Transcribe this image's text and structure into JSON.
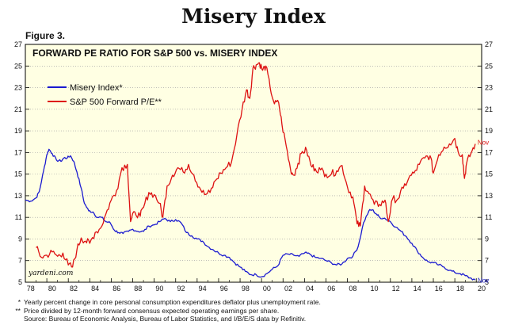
{
  "page_title": "Misery Index",
  "figure_label": "Figure 3.",
  "chart_data": {
    "type": "line",
    "title": "FORWARD PE RATIO FOR S&P 500 vs. MISERY INDEX",
    "x_ticks": [
      "78",
      "80",
      "82",
      "84",
      "86",
      "88",
      "90",
      "92",
      "94",
      "96",
      "98",
      "00",
      "02",
      "04",
      "06",
      "08",
      "10",
      "12",
      "14",
      "16",
      "18",
      "20"
    ],
    "xlim": [
      1978,
      2020.5
    ],
    "y_left": {
      "ylim": [
        5,
        27
      ],
      "ticks": [
        5,
        7,
        9,
        11,
        13,
        15,
        17,
        19,
        21,
        23,
        25,
        27
      ]
    },
    "y_right": {
      "ylim": [
        5,
        27
      ],
      "ticks": [
        5,
        7,
        9,
        11,
        13,
        15,
        17,
        19,
        21,
        23,
        25,
        27
      ]
    },
    "legend_position": "top-left",
    "watermark": "yardeni.com",
    "series": [
      {
        "name": "Misery Index*",
        "color": "#1a1ad0",
        "end_label": "Nov",
        "points": [
          [
            1978.0,
            12.6
          ],
          [
            1978.5,
            12.5
          ],
          [
            1979.0,
            12.8
          ],
          [
            1979.3,
            13.4
          ],
          [
            1979.7,
            15.3
          ],
          [
            1980.0,
            16.8
          ],
          [
            1980.2,
            17.3
          ],
          [
            1980.5,
            16.9
          ],
          [
            1980.9,
            16.3
          ],
          [
            1981.3,
            16.2
          ],
          [
            1981.6,
            16.5
          ],
          [
            1981.9,
            16.5
          ],
          [
            1982.2,
            16.7
          ],
          [
            1982.5,
            16.2
          ],
          [
            1982.8,
            15.2
          ],
          [
            1983.2,
            13.7
          ],
          [
            1983.5,
            12.3
          ],
          [
            1983.9,
            11.6
          ],
          [
            1984.3,
            11.5
          ],
          [
            1984.7,
            11.0
          ],
          [
            1985.1,
            11.0
          ],
          [
            1985.5,
            10.6
          ],
          [
            1985.9,
            10.5
          ],
          [
            1986.3,
            9.8
          ],
          [
            1986.7,
            9.6
          ],
          [
            1987.1,
            9.5
          ],
          [
            1987.6,
            9.7
          ],
          [
            1988.0,
            9.9
          ],
          [
            1988.5,
            9.7
          ],
          [
            1989.0,
            9.7
          ],
          [
            1989.5,
            10.2
          ],
          [
            1990.0,
            10.3
          ],
          [
            1990.5,
            10.6
          ],
          [
            1991.0,
            10.9
          ],
          [
            1991.5,
            10.6
          ],
          [
            1992.0,
            10.8
          ],
          [
            1992.5,
            10.5
          ],
          [
            1993.0,
            9.6
          ],
          [
            1993.5,
            9.3
          ],
          [
            1994.0,
            9.0
          ],
          [
            1994.5,
            8.8
          ],
          [
            1995.0,
            8.3
          ],
          [
            1995.5,
            8.0
          ],
          [
            1996.0,
            7.7
          ],
          [
            1996.5,
            7.5
          ],
          [
            1997.0,
            7.3
          ],
          [
            1997.5,
            6.8
          ],
          [
            1998.0,
            6.4
          ],
          [
            1998.5,
            6.0
          ],
          [
            1999.0,
            5.7
          ],
          [
            1999.5,
            5.7
          ],
          [
            2000.0,
            5.5
          ],
          [
            2000.5,
            5.8
          ],
          [
            2001.0,
            6.2
          ],
          [
            2001.5,
            6.5
          ],
          [
            2002.0,
            7.5
          ],
          [
            2002.5,
            7.6
          ],
          [
            2003.0,
            7.5
          ],
          [
            2003.5,
            7.4
          ],
          [
            2004.0,
            7.7
          ],
          [
            2004.5,
            7.6
          ],
          [
            2005.0,
            7.3
          ],
          [
            2005.5,
            7.2
          ],
          [
            2006.0,
            7.0
          ],
          [
            2006.5,
            6.8
          ],
          [
            2007.0,
            6.6
          ],
          [
            2007.5,
            6.7
          ],
          [
            2008.0,
            7.2
          ],
          [
            2008.5,
            7.4
          ],
          [
            2009.0,
            8.3
          ],
          [
            2009.5,
            10.5
          ],
          [
            2010.0,
            11.6
          ],
          [
            2010.3,
            11.7
          ],
          [
            2010.7,
            11.3
          ],
          [
            2011.0,
            11.0
          ],
          [
            2011.5,
            10.9
          ],
          [
            2012.0,
            10.6
          ],
          [
            2012.5,
            10.1
          ],
          [
            2013.0,
            9.7
          ],
          [
            2013.5,
            9.2
          ],
          [
            2014.0,
            8.6
          ],
          [
            2014.5,
            7.9
          ],
          [
            2015.0,
            7.3
          ],
          [
            2015.5,
            6.9
          ],
          [
            2016.0,
            6.8
          ],
          [
            2016.5,
            6.6
          ],
          [
            2017.0,
            6.4
          ],
          [
            2017.5,
            6.1
          ],
          [
            2018.0,
            5.9
          ],
          [
            2018.5,
            5.8
          ],
          [
            2019.0,
            5.6
          ],
          [
            2019.4,
            5.4
          ],
          [
            2019.9,
            5.2
          ]
        ]
      },
      {
        "name": "S&P 500 Forward P/E**",
        "color": "#dd1111",
        "end_label": "Nov",
        "points": [
          [
            1979.0,
            8.2
          ],
          [
            1979.5,
            7.3
          ],
          [
            1980.0,
            7.5
          ],
          [
            1980.5,
            7.8
          ],
          [
            1981.0,
            7.4
          ],
          [
            1981.5,
            7.7
          ],
          [
            1982.0,
            6.6
          ],
          [
            1982.4,
            6.4
          ],
          [
            1982.8,
            8.0
          ],
          [
            1983.2,
            9.1
          ],
          [
            1983.6,
            8.8
          ],
          [
            1984.0,
            8.6
          ],
          [
            1984.5,
            9.6
          ],
          [
            1985.0,
            10.0
          ],
          [
            1985.5,
            11.3
          ],
          [
            1986.0,
            12.6
          ],
          [
            1986.5,
            13.5
          ],
          [
            1987.0,
            15.6
          ],
          [
            1987.5,
            15.9
          ],
          [
            1987.8,
            10.6
          ],
          [
            1988.2,
            11.5
          ],
          [
            1988.7,
            11.1
          ],
          [
            1989.0,
            11.9
          ],
          [
            1989.5,
            13.3
          ],
          [
            1990.0,
            13.1
          ],
          [
            1990.5,
            12.3
          ],
          [
            1990.8,
            11.0
          ],
          [
            1991.2,
            13.9
          ],
          [
            1991.7,
            14.9
          ],
          [
            1992.2,
            15.6
          ],
          [
            1992.7,
            15.2
          ],
          [
            1993.2,
            15.9
          ],
          [
            1993.7,
            14.9
          ],
          [
            1994.2,
            13.8
          ],
          [
            1994.7,
            13.1
          ],
          [
            1995.2,
            13.3
          ],
          [
            1995.7,
            14.4
          ],
          [
            1996.2,
            15.1
          ],
          [
            1996.7,
            15.6
          ],
          [
            1997.2,
            16.1
          ],
          [
            1997.7,
            18.6
          ],
          [
            1998.2,
            21.1
          ],
          [
            1998.6,
            22.8
          ],
          [
            1998.9,
            22.0
          ],
          [
            1999.2,
            24.8
          ],
          [
            1999.5,
            25.1
          ],
          [
            1999.8,
            25.3
          ],
          [
            2000.1,
            24.6
          ],
          [
            2000.4,
            25.0
          ],
          [
            2000.8,
            23.0
          ],
          [
            2001.2,
            21.5
          ],
          [
            2001.6,
            21.6
          ],
          [
            2001.9,
            19.6
          ],
          [
            2002.3,
            17.6
          ],
          [
            2002.7,
            15.4
          ],
          [
            2003.0,
            14.9
          ],
          [
            2003.4,
            16.0
          ],
          [
            2003.8,
            17.1
          ],
          [
            2004.2,
            17.2
          ],
          [
            2004.6,
            15.8
          ],
          [
            2005.0,
            15.5
          ],
          [
            2005.5,
            15.4
          ],
          [
            2006.0,
            15.0
          ],
          [
            2006.5,
            15.0
          ],
          [
            2007.0,
            15.3
          ],
          [
            2007.5,
            15.8
          ],
          [
            2008.0,
            13.8
          ],
          [
            2008.5,
            12.9
          ],
          [
            2008.9,
            10.4
          ],
          [
            2009.2,
            10.2
          ],
          [
            2009.6,
            13.9
          ],
          [
            2010.0,
            13.2
          ],
          [
            2010.5,
            12.2
          ],
          [
            2011.0,
            12.2
          ],
          [
            2011.5,
            12.6
          ],
          [
            2011.8,
            10.6
          ],
          [
            2012.2,
            12.7
          ],
          [
            2012.7,
            12.7
          ],
          [
            2013.2,
            13.7
          ],
          [
            2013.7,
            14.6
          ],
          [
            2014.2,
            15.1
          ],
          [
            2014.7,
            15.9
          ],
          [
            2015.2,
            16.5
          ],
          [
            2015.7,
            16.7
          ],
          [
            2016.0,
            15.1
          ],
          [
            2016.5,
            16.8
          ],
          [
            2017.0,
            17.5
          ],
          [
            2017.5,
            17.8
          ],
          [
            2018.0,
            18.3
          ],
          [
            2018.3,
            17.1
          ],
          [
            2018.7,
            16.8
          ],
          [
            2018.9,
            14.6
          ],
          [
            2019.1,
            16.0
          ],
          [
            2019.5,
            16.9
          ],
          [
            2019.9,
            17.8
          ]
        ]
      }
    ]
  },
  "footnotes": [
    {
      "mark": "*",
      "text": "Yearly percent change in core personal consumption expenditures deflator plus unemployment rate."
    },
    {
      "mark": "**",
      "text": "Price divided by 12-month forward consensus expected operating earnings per share."
    },
    {
      "mark": "",
      "text": "Source: Bureau of Economic Analysis, Bureau of Labor Statistics, and I/B/E/S data by Refinitiv."
    }
  ],
  "colors": {
    "plot_background": "#ffffe3",
    "grid": "#9a9a9a",
    "misery": "#1a1ad0",
    "pe": "#dd1111"
  }
}
